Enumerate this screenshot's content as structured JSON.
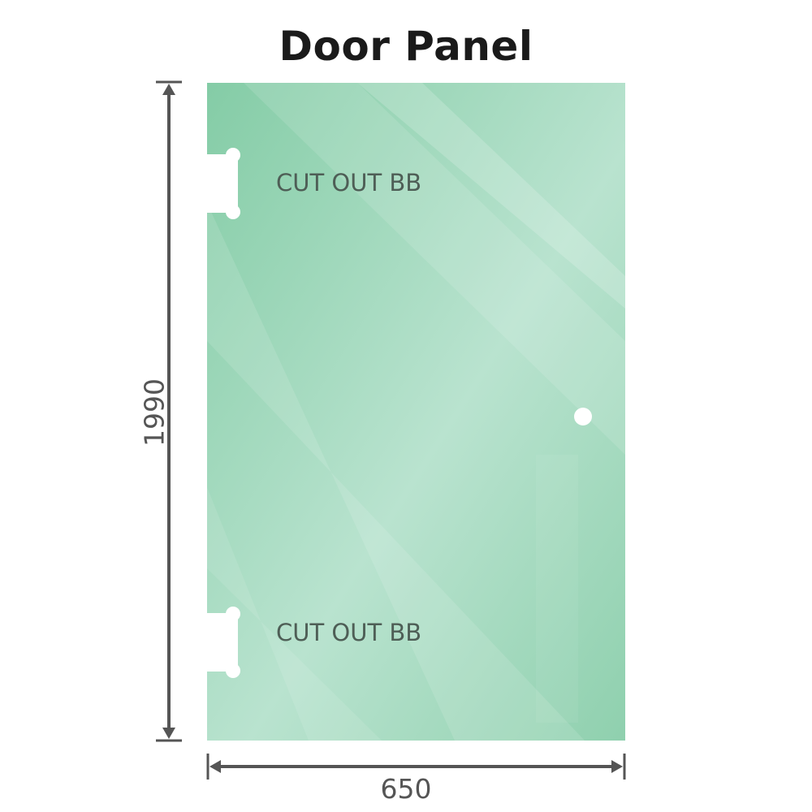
{
  "title": "Door Panel",
  "dimensions": {
    "height": "1990",
    "width": "650"
  },
  "cutouts": [
    {
      "label": "CUT OUT BB"
    },
    {
      "label": "CUT OUT BB"
    }
  ],
  "colors": {
    "glass": "#8fd0ae",
    "glass_light": "#bde5d2",
    "dimension_line": "#555555",
    "text": "#555555"
  }
}
